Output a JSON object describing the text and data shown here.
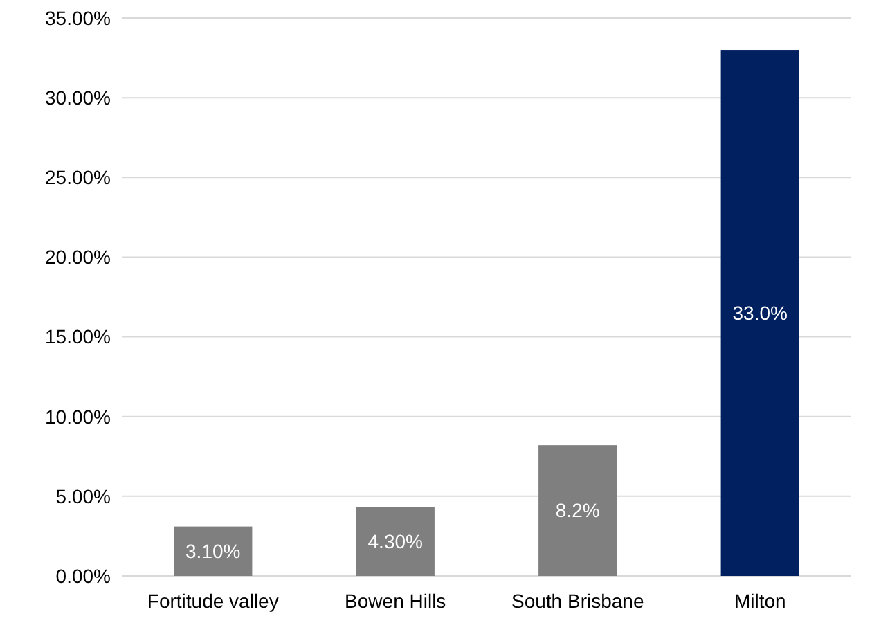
{
  "chart_data": {
    "type": "bar",
    "categories": [
      "Fortitude valley",
      "Bowen Hills",
      "South Brisbane",
      "Milton"
    ],
    "values": [
      3.1,
      4.3,
      8.2,
      33.0
    ],
    "colors": [
      "#7f7f7f",
      "#7f7f7f",
      "#7f7f7f",
      "#002060"
    ],
    "value_labels": [
      "3.10%",
      "4.30%",
      "8.2%",
      "33.0%"
    ],
    "ylim": [
      0,
      35
    ],
    "yticks": [
      {
        "value": 0,
        "label": "0.00%"
      },
      {
        "value": 5,
        "label": "5.00%"
      },
      {
        "value": 10,
        "label": "10.00%"
      },
      {
        "value": 15,
        "label": "15.00%"
      },
      {
        "value": 20,
        "label": "20.00%"
      },
      {
        "value": 25,
        "label": "25.00%"
      },
      {
        "value": 30,
        "label": "30.00%"
      },
      {
        "value": 35,
        "label": "35.00%"
      }
    ],
    "grid": "y"
  }
}
